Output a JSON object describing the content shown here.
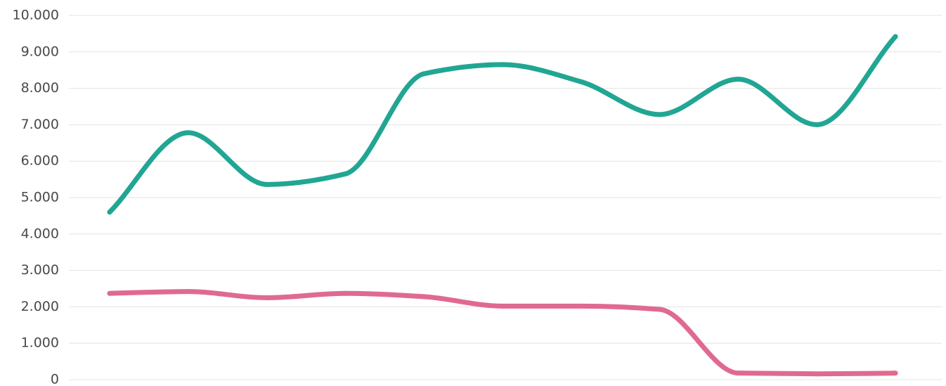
{
  "chart_data": {
    "type": "line",
    "title": "",
    "xlabel": "",
    "ylabel": "",
    "ylim": [
      0,
      10000
    ],
    "yticks": [
      0,
      1000,
      2000,
      3000,
      4000,
      5000,
      6000,
      7000,
      8000,
      9000,
      10000
    ],
    "ytick_labels": [
      "0",
      "1.000",
      "2.000",
      "3.000",
      "4.000",
      "5.000",
      "6.000",
      "7.000",
      "8.000",
      "9.000",
      "10.000"
    ],
    "x": [
      1,
      2,
      3,
      4,
      5,
      6,
      7,
      8,
      9,
      10,
      11
    ],
    "grid": true,
    "legend": "none",
    "smooth": true,
    "series": [
      {
        "color": "#21a693",
        "values": [
          4600,
          6780,
          5360,
          5650,
          8400,
          8650,
          8180,
          7280,
          8250,
          7000,
          9420
        ]
      },
      {
        "color": "#e06a8f",
        "values": [
          2370,
          2420,
          2250,
          2370,
          2280,
          2020,
          2020,
          1930,
          180,
          160,
          180
        ]
      }
    ]
  }
}
